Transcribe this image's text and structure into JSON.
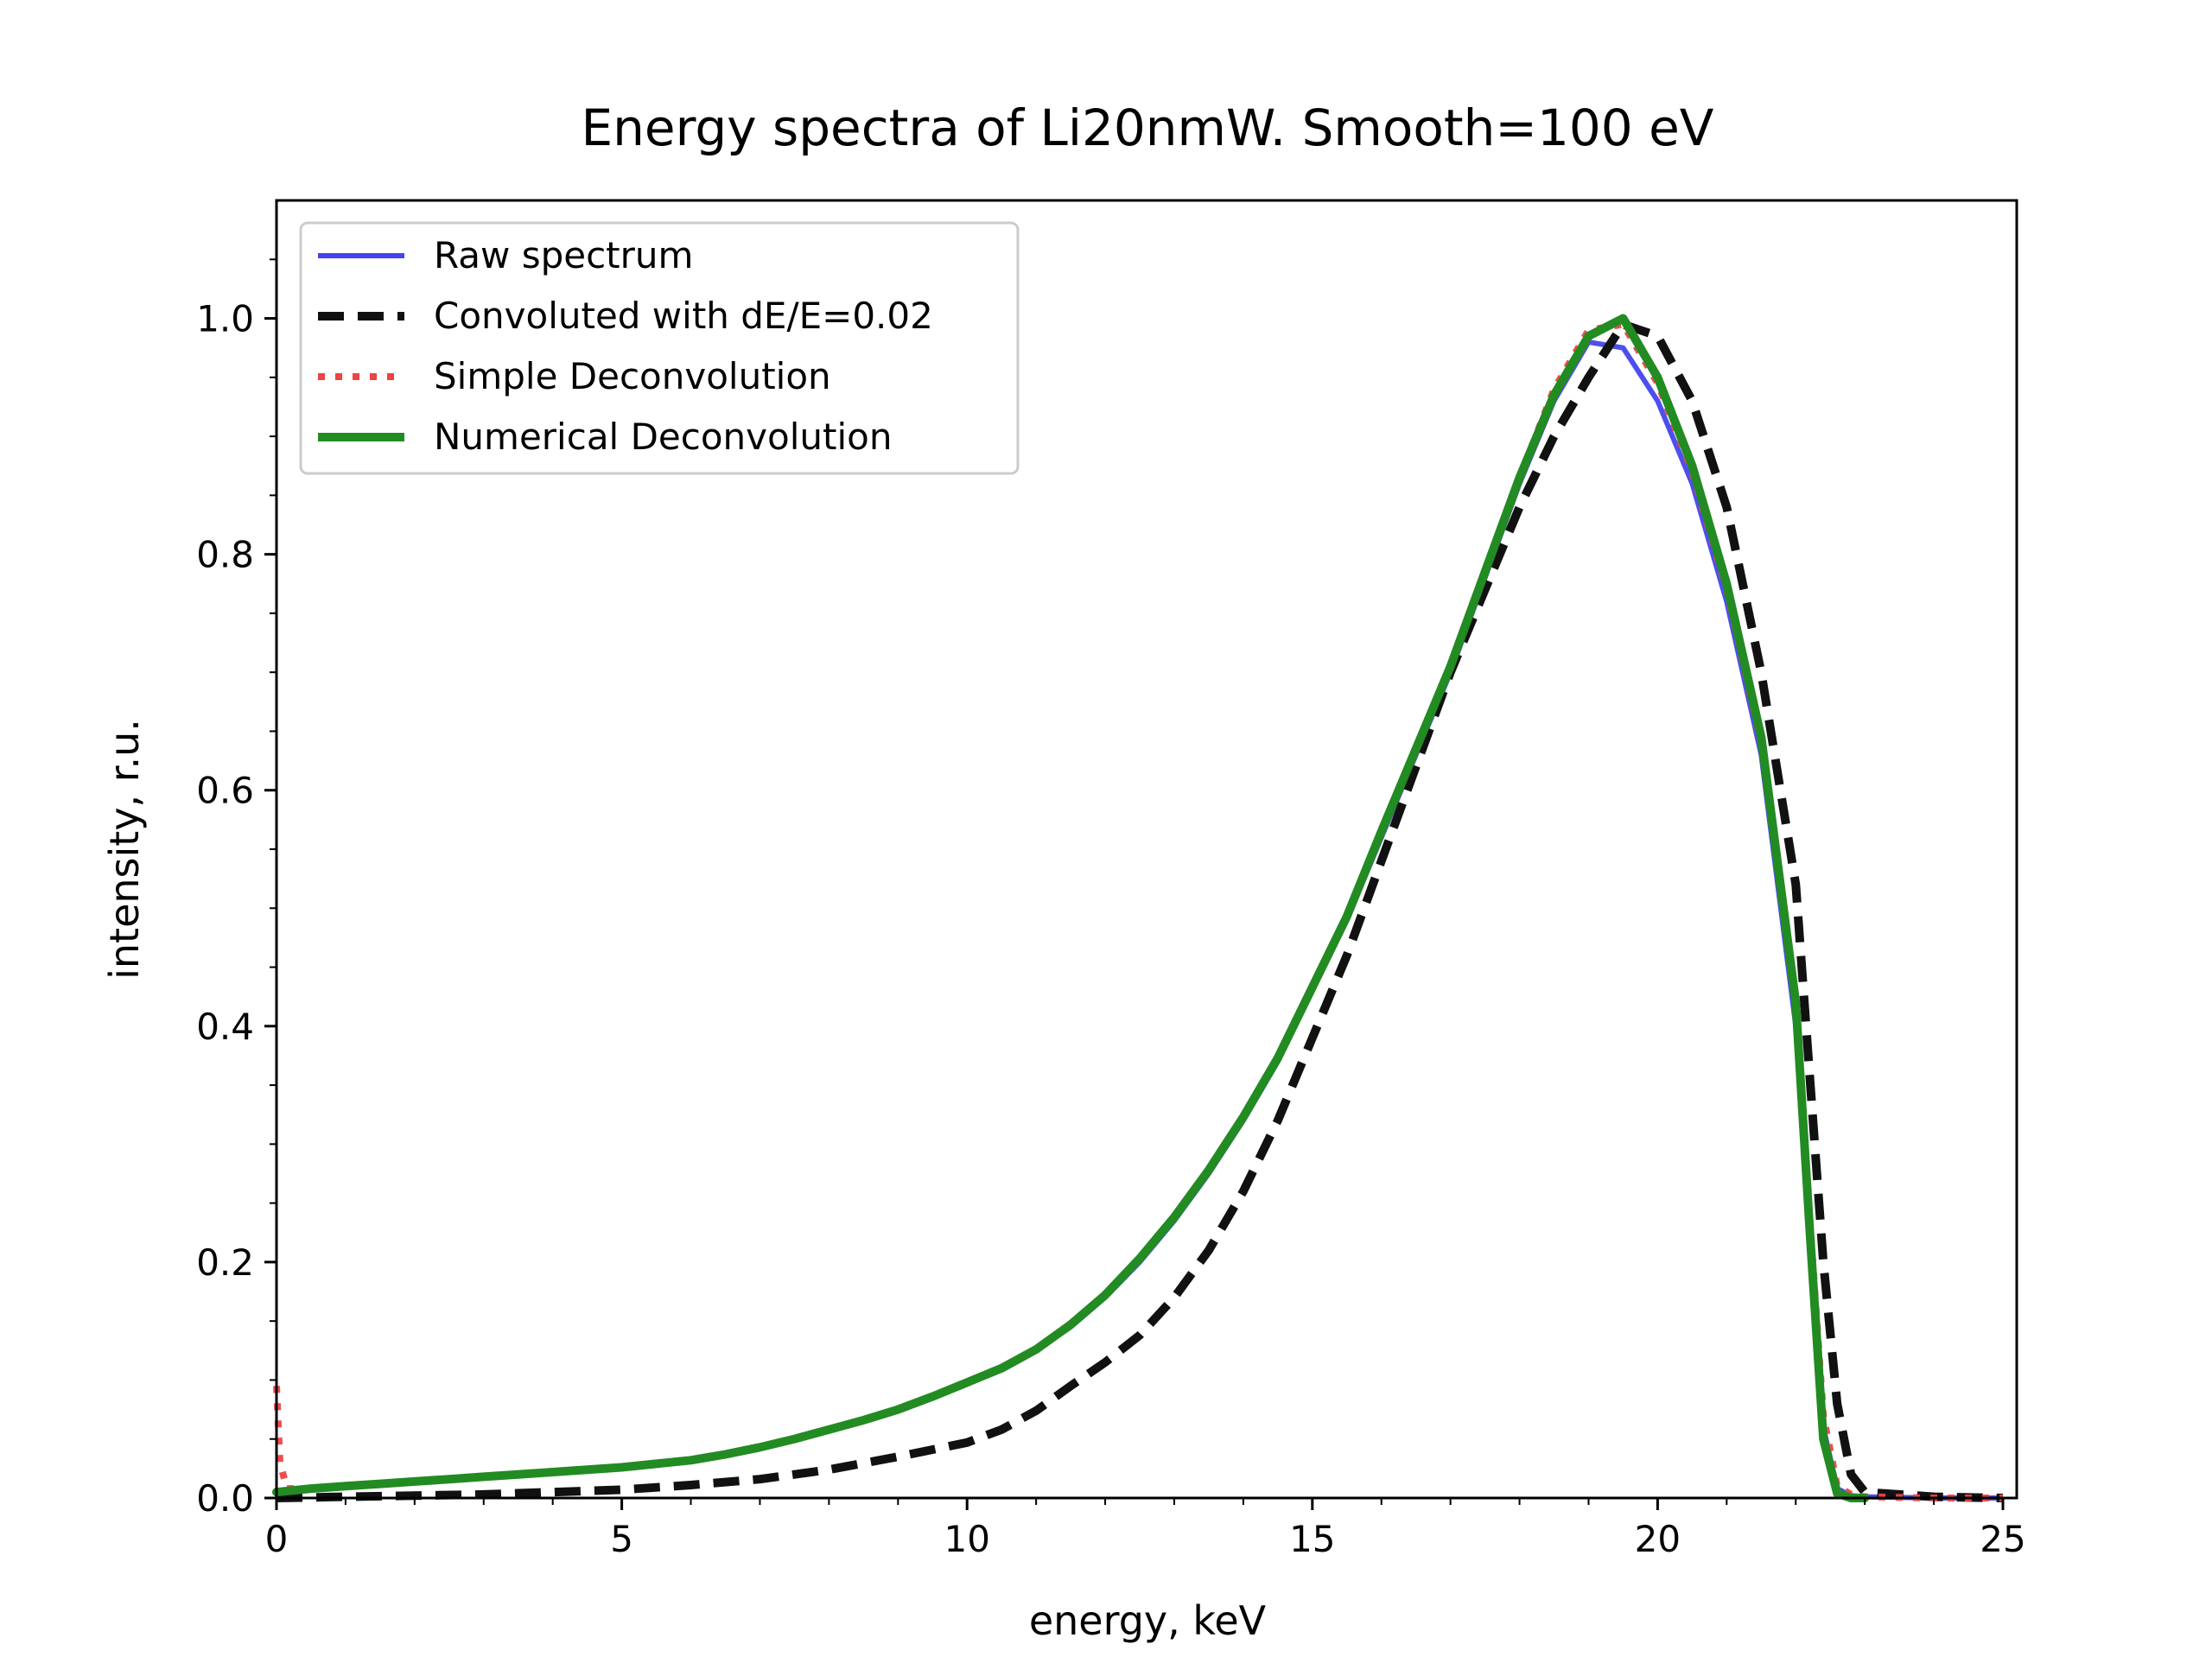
{
  "chart_data": {
    "type": "line",
    "title": "Energy spectra of Li20nmW. Smooth=100 eV",
    "xlabel": "energy, keV",
    "ylabel": "intensity, r.u.",
    "xlim": [
      0,
      25.2
    ],
    "ylim": [
      0,
      1.1
    ],
    "xticks": [
      0,
      5,
      10,
      15,
      20,
      25
    ],
    "yticks": [
      0.0,
      0.2,
      0.4,
      0.6,
      0.8,
      1.0
    ],
    "xtick_labels": [
      "0",
      "5",
      "10",
      "15",
      "20",
      "25"
    ],
    "ytick_labels": [
      "0.0",
      "0.2",
      "0.4",
      "0.6",
      "0.8",
      "1.0"
    ],
    "grid": false,
    "legend_position": "top-left",
    "series": [
      {
        "name": "Raw spectrum",
        "color": "#4444ee",
        "style": "solid",
        "x": [
          0,
          0.5,
          1,
          1.5,
          2,
          2.5,
          3,
          3.5,
          4,
          4.5,
          5,
          5.5,
          6,
          6.5,
          7,
          7.5,
          8,
          8.5,
          9,
          9.5,
          10,
          10.5,
          11,
          11.5,
          12,
          12.5,
          13,
          13.5,
          14,
          14.5,
          15,
          15.5,
          16,
          16.5,
          17,
          17.5,
          18,
          18.5,
          19,
          19.5,
          20,
          20.5,
          21,
          21.5,
          22,
          22.2,
          22.4,
          22.6,
          22.8,
          23,
          24,
          25
        ],
        "y": [
          0.005,
          0.008,
          0.01,
          0.012,
          0.014,
          0.016,
          0.018,
          0.02,
          0.022,
          0.024,
          0.026,
          0.029,
          0.032,
          0.037,
          0.043,
          0.05,
          0.058,
          0.066,
          0.075,
          0.086,
          0.098,
          0.11,
          0.125,
          0.145,
          0.17,
          0.2,
          0.235,
          0.275,
          0.32,
          0.37,
          0.43,
          0.49,
          0.56,
          0.63,
          0.7,
          0.78,
          0.86,
          0.93,
          0.98,
          0.975,
          0.93,
          0.86,
          0.76,
          0.63,
          0.4,
          0.22,
          0.06,
          0.008,
          0.002,
          0.001,
          0.0,
          0.0
        ]
      },
      {
        "name": "Convoluted with dE/E=0.02",
        "color": "#111111",
        "style": "dashed",
        "x": [
          0,
          1,
          2,
          3,
          4,
          5,
          6,
          7,
          8,
          9,
          10,
          10.5,
          11,
          11.5,
          12,
          12.5,
          13,
          13.5,
          14,
          14.5,
          15,
          15.5,
          16,
          16.5,
          17,
          17.5,
          18,
          18.5,
          19,
          19.5,
          20,
          20.5,
          21,
          21.5,
          22,
          22.2,
          22.4,
          22.6,
          22.8,
          23,
          24,
          25
        ],
        "y": [
          0.0,
          0.001,
          0.002,
          0.003,
          0.005,
          0.007,
          0.011,
          0.016,
          0.024,
          0.035,
          0.047,
          0.058,
          0.074,
          0.095,
          0.115,
          0.138,
          0.17,
          0.21,
          0.26,
          0.32,
          0.39,
          0.46,
          0.54,
          0.62,
          0.7,
          0.77,
          0.84,
          0.9,
          0.95,
          0.995,
          0.985,
          0.93,
          0.84,
          0.7,
          0.52,
          0.36,
          0.2,
          0.08,
          0.02,
          0.005,
          0.001,
          0.0
        ]
      },
      {
        "name": "Simple Deconvolution",
        "color": "#ee4444",
        "style": "dotted",
        "x": [
          0,
          0.05,
          0.15,
          0.5,
          1,
          1.5,
          2,
          2.5,
          3,
          3.5,
          4,
          4.5,
          5,
          5.5,
          6,
          6.5,
          7,
          7.5,
          8,
          8.5,
          9,
          9.5,
          10,
          10.5,
          11,
          11.5,
          12,
          12.5,
          13,
          13.5,
          14,
          14.5,
          15,
          15.5,
          16,
          16.5,
          17,
          17.5,
          18,
          18.5,
          19,
          19.5,
          20,
          20.5,
          21,
          21.5,
          22,
          22.2,
          22.4,
          22.6,
          22.8,
          23,
          24,
          25
        ],
        "y": [
          0.095,
          0.03,
          0.008,
          0.008,
          0.01,
          0.012,
          0.014,
          0.016,
          0.018,
          0.02,
          0.022,
          0.024,
          0.026,
          0.029,
          0.032,
          0.037,
          0.043,
          0.05,
          0.058,
          0.066,
          0.075,
          0.086,
          0.098,
          0.11,
          0.126,
          0.147,
          0.172,
          0.203,
          0.238,
          0.278,
          0.323,
          0.373,
          0.433,
          0.493,
          0.565,
          0.635,
          0.705,
          0.785,
          0.865,
          0.94,
          0.99,
          0.995,
          0.945,
          0.87,
          0.77,
          0.64,
          0.42,
          0.24,
          0.07,
          0.01,
          0.003,
          0.001,
          0.0,
          0.0
        ]
      },
      {
        "name": "Numerical Deconvolution",
        "color": "#228b22",
        "style": "solid-thick",
        "x": [
          0,
          0.5,
          1,
          1.5,
          2,
          2.5,
          3,
          3.5,
          4,
          4.5,
          5,
          5.5,
          6,
          6.5,
          7,
          7.5,
          8,
          8.5,
          9,
          9.5,
          10,
          10.5,
          11,
          11.5,
          12,
          12.5,
          13,
          13.5,
          14,
          14.5,
          15,
          15.5,
          16,
          16.5,
          17,
          17.5,
          18,
          18.5,
          19,
          19.5,
          20,
          20.5,
          21,
          21.5,
          22,
          22.2,
          22.4,
          22.6,
          22.8,
          23
        ],
        "y": [
          0.005,
          0.008,
          0.01,
          0.012,
          0.014,
          0.016,
          0.018,
          0.02,
          0.022,
          0.024,
          0.026,
          0.029,
          0.032,
          0.037,
          0.043,
          0.05,
          0.058,
          0.066,
          0.075,
          0.086,
          0.098,
          0.11,
          0.126,
          0.147,
          0.172,
          0.203,
          0.238,
          0.278,
          0.323,
          0.373,
          0.433,
          0.493,
          0.565,
          0.635,
          0.705,
          0.785,
          0.865,
          0.935,
          0.985,
          1.0,
          0.95,
          0.875,
          0.775,
          0.645,
          0.42,
          0.23,
          0.05,
          0.004,
          0.0,
          0.0
        ]
      }
    ]
  }
}
